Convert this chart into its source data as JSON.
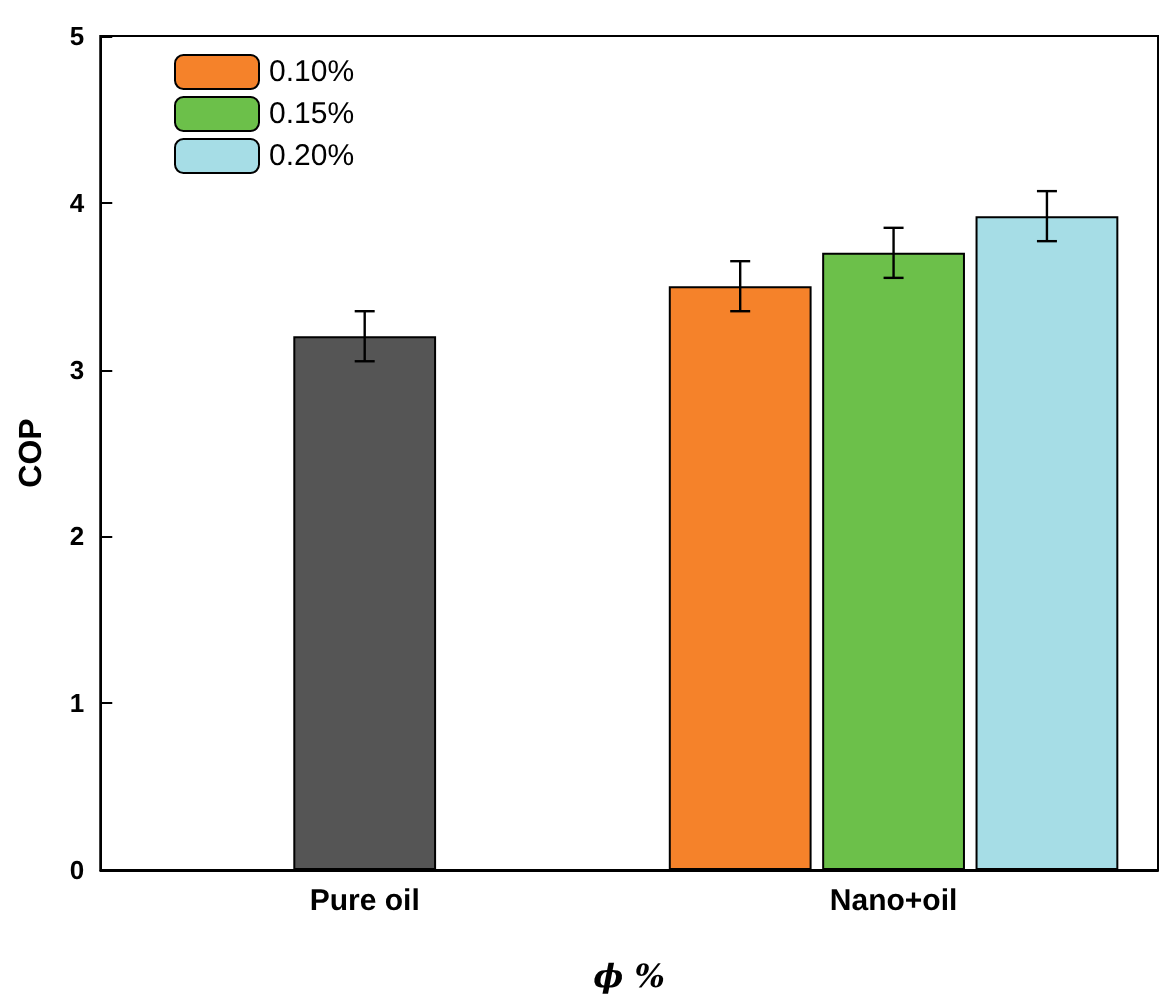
{
  "chart_data": {
    "type": "bar",
    "xlabel": "ϕ %",
    "ylabel": "COP",
    "categories": [
      "Pure oil",
      "Nano+oil"
    ],
    "series": [
      {
        "color": "#555555",
        "values": [
          3.2,
          null
        ],
        "errors": [
          0.15,
          null
        ]
      },
      {
        "name": "0.10%",
        "color": "#f5822a",
        "values": [
          null,
          3.5
        ],
        "errors": [
          null,
          0.15
        ]
      },
      {
        "name": "0.15%",
        "color": "#6cc04a",
        "values": [
          null,
          3.7
        ],
        "errors": [
          null,
          0.15
        ]
      },
      {
        "name": "0.20%",
        "color": "#a6dde6",
        "values": [
          null,
          3.92
        ],
        "errors": [
          null,
          0.15
        ]
      }
    ],
    "ylim": [
      0,
      5
    ],
    "yticks": [
      0,
      1,
      2,
      3,
      4,
      5
    ],
    "grid": false,
    "legend": "top left"
  }
}
